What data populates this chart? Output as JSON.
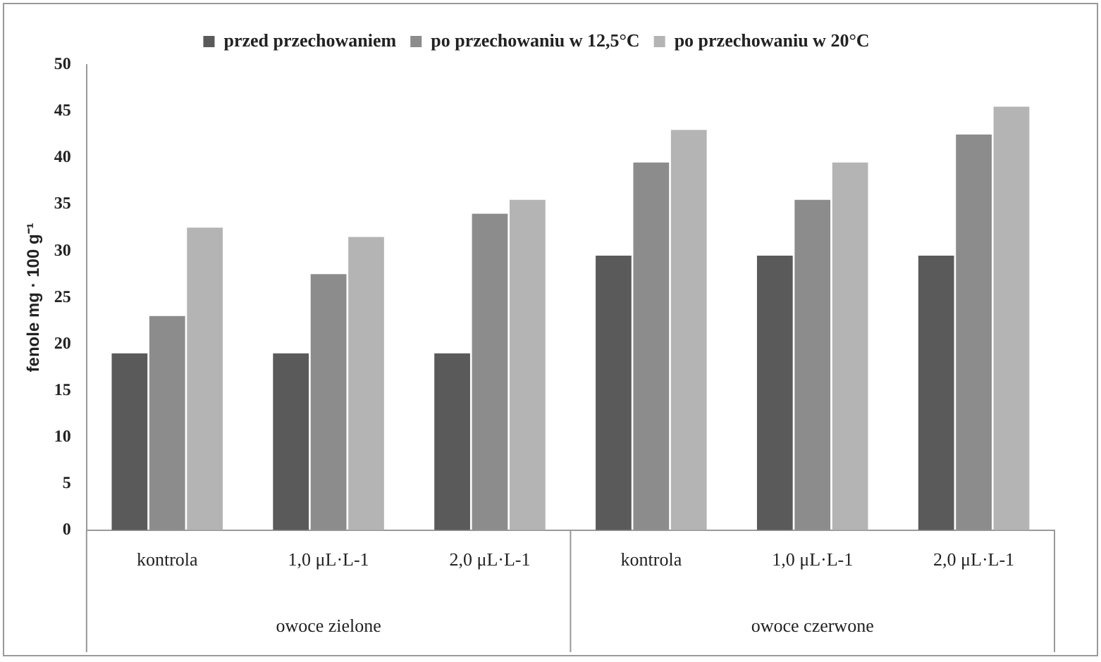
{
  "chart_data": {
    "type": "bar",
    "ylabel": "fenole mg · 100 g⁻¹",
    "categories": [
      "kontrola",
      "1,0 μL·L-1",
      "2,0 μL·L-1",
      "kontrola",
      "1,0 μL·L-1",
      "2,0 μL·L-1"
    ],
    "series": [
      {
        "name": "przed przechowaniem",
        "color": "#5a5a5a",
        "values": [
          19,
          19,
          19,
          29.5,
          29.5,
          29.5
        ]
      },
      {
        "name": "po przechowaniu w 12,5°C",
        "color": "#8c8c8c",
        "values": [
          23,
          27.5,
          34,
          39.5,
          35.5,
          42.5
        ]
      },
      {
        "name": "po przechowaniu w 20°C",
        "color": "#b4b4b4",
        "values": [
          32.5,
          31.5,
          35.5,
          43,
          39.5,
          45.5
        ]
      }
    ],
    "ylim": [
      0,
      50
    ],
    "yticks": [
      0,
      5,
      10,
      15,
      20,
      25,
      30,
      35,
      40,
      45,
      50
    ],
    "grid": false,
    "legend": "top",
    "annotations": [
      "owoce zielone",
      "owoce czerwone"
    ]
  }
}
